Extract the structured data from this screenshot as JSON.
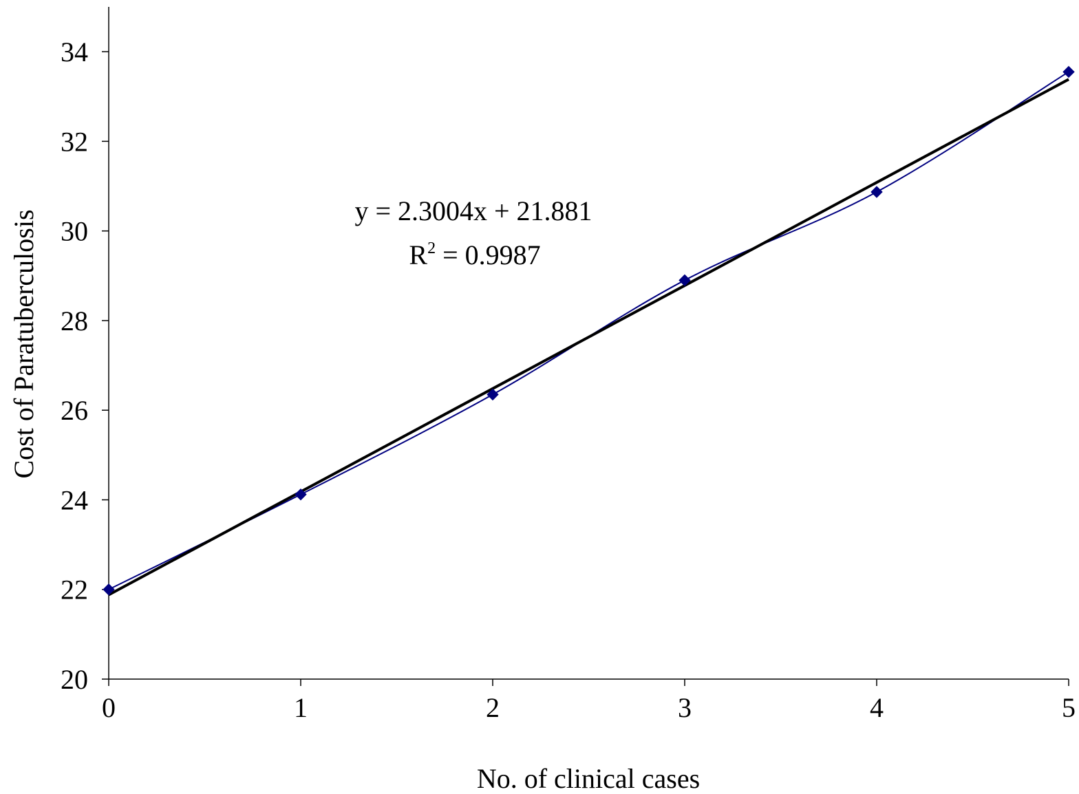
{
  "chart_data": {
    "type": "scatter",
    "title": "",
    "xlabel": "No. of clinical cases",
    "ylabel": "Cost of Paratuberculosis",
    "xlim": [
      0,
      5
    ],
    "ylim": [
      20,
      35
    ],
    "x_ticks": [
      0,
      1,
      2,
      3,
      4,
      5
    ],
    "x_tick_labels": [
      "0",
      "1",
      "2",
      "3",
      "4",
      "5"
    ],
    "y_ticks": [
      20,
      22,
      24,
      26,
      28,
      30,
      32,
      34
    ],
    "y_tick_labels": [
      "20",
      "22",
      "24",
      "26",
      "28",
      "30",
      "32",
      "34"
    ],
    "grid": false,
    "legend": "none",
    "series": [
      {
        "style": "smoothed line with diamond markers",
        "color": "#000080",
        "x": [
          0,
          1,
          2,
          3,
          4,
          5
        ],
        "y": [
          22.0,
          24.12,
          26.35,
          28.9,
          30.87,
          33.55
        ]
      }
    ],
    "trendline": {
      "type": "linear",
      "slope": 2.3004,
      "intercept": 21.881,
      "color": "#000000"
    },
    "annotations": {
      "equation": "y = 2.3004x + 21.881",
      "r2_prefix": "R",
      "r2_sup": "2",
      "r2_rest": " = 0.9987"
    }
  }
}
